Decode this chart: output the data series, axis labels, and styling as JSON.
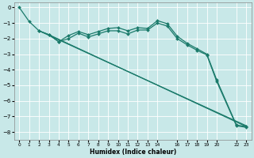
{
  "title": "",
  "xlabel": "Humidex (Indice chaleur)",
  "bg_color": "#c8e8e8",
  "grid_color": "#ffffff",
  "line_color": "#1a7a6a",
  "xlim": [
    -0.5,
    23.5
  ],
  "ylim": [
    -8.5,
    0.3
  ],
  "yticks": [
    0,
    -1,
    -2,
    -3,
    -4,
    -5,
    -6,
    -7,
    -8
  ],
  "xtick_pos": [
    0,
    1,
    2,
    3,
    4,
    5,
    6,
    7,
    8,
    9,
    10,
    11,
    12,
    13,
    14,
    16,
    17,
    18,
    19,
    20,
    22,
    23
  ],
  "xtick_labels": [
    "0",
    "1",
    "2",
    "3",
    "4",
    "5",
    "6",
    "7",
    "8",
    "9",
    "10",
    "11",
    "12",
    "13",
    "14",
    "16",
    "17",
    "18",
    "19",
    "20",
    "22",
    "23"
  ],
  "series": [
    {
      "x": [
        0,
        1,
        2,
        3,
        4,
        5,
        6,
        7,
        8,
        9,
        10,
        11,
        12,
        13,
        14,
        15,
        16,
        17,
        18,
        19,
        20,
        22,
        23
      ],
      "y": [
        0.0,
        -0.9,
        -1.5,
        -1.75,
        -2.2,
        -1.8,
        -1.55,
        -1.75,
        -1.55,
        -1.35,
        -1.3,
        -1.5,
        -1.3,
        -1.35,
        -0.85,
        -1.05,
        -1.85,
        -2.3,
        -2.65,
        -3.0,
        -4.65,
        -7.55,
        -7.65
      ],
      "marker": "D",
      "markersize": 2.0,
      "linewidth": 0.9
    },
    {
      "x": [
        2,
        3,
        4,
        5,
        6,
        7,
        8,
        9,
        10,
        11,
        12,
        13,
        14,
        15,
        16,
        17,
        18,
        19,
        20,
        22,
        23
      ],
      "y": [
        -1.5,
        -1.75,
        -2.2,
        -2.0,
        -1.65,
        -1.9,
        -1.7,
        -1.5,
        -1.5,
        -1.7,
        -1.45,
        -1.45,
        -1.0,
        -1.2,
        -2.0,
        -2.4,
        -2.75,
        -3.05,
        -4.75,
        -7.6,
        -7.7
      ],
      "marker": "D",
      "markersize": 2.0,
      "linewidth": 0.9
    },
    {
      "x": [
        2,
        23
      ],
      "y": [
        -1.5,
        -7.6
      ],
      "marker": null,
      "markersize": 0,
      "linewidth": 0.9
    },
    {
      "x": [
        3,
        23
      ],
      "y": [
        -1.75,
        -7.65
      ],
      "marker": null,
      "markersize": 0,
      "linewidth": 0.9
    }
  ]
}
